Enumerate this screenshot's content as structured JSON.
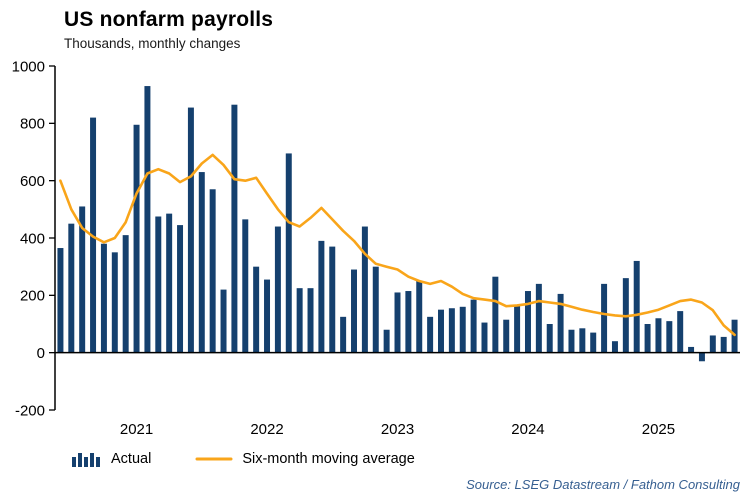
{
  "chart_data": {
    "type": "bar",
    "title": "US nonfarm payrolls",
    "subtitle": "Thousands, monthly changes",
    "source": "Source: LSEG Datastream / Fathom Consulting",
    "ylim": [
      -200,
      1000
    ],
    "yticks": [
      1000,
      800,
      600,
      400,
      200,
      0,
      -200
    ],
    "year_labels": [
      "2021",
      "2022",
      "2023",
      "2024",
      "2025"
    ],
    "x_start": "2020-06",
    "x_frequency": "monthly",
    "bar_color": "#15406e",
    "line_color": "#f9a51a",
    "source_color": "#365f91",
    "legend": [
      {
        "label": "Actual",
        "type": "bar"
      },
      {
        "label": "Six-month moving average",
        "type": "line"
      }
    ],
    "series": [
      {
        "name": "Actual",
        "type": "bar",
        "values": [
          365,
          450,
          510,
          820,
          380,
          350,
          410,
          795,
          930,
          475,
          485,
          445,
          855,
          630,
          570,
          220,
          865,
          465,
          300,
          255,
          440,
          695,
          225,
          225,
          390,
          370,
          125,
          290,
          440,
          300,
          80,
          210,
          215,
          250,
          125,
          150,
          155,
          160,
          185,
          105,
          265,
          115,
          165,
          215,
          240,
          100,
          205,
          80,
          85,
          70,
          240,
          40,
          260,
          320,
          100,
          120,
          110,
          145,
          20,
          -30,
          60,
          55,
          115
        ]
      },
      {
        "name": "Six-month moving average",
        "type": "line",
        "values": [
          600,
          500,
          435,
          405,
          385,
          400,
          455,
          555,
          625,
          640,
          625,
          595,
          615,
          660,
          690,
          655,
          605,
          600,
          610,
          555,
          500,
          455,
          440,
          470,
          505,
          465,
          425,
          390,
          345,
          310,
          300,
          290,
          265,
          250,
          240,
          250,
          230,
          205,
          190,
          185,
          180,
          162,
          165,
          170,
          180,
          175,
          170,
          160,
          150,
          142,
          135,
          130,
          127,
          132,
          140,
          150,
          165,
          180,
          185,
          175,
          148,
          95,
          62
        ]
      }
    ]
  }
}
